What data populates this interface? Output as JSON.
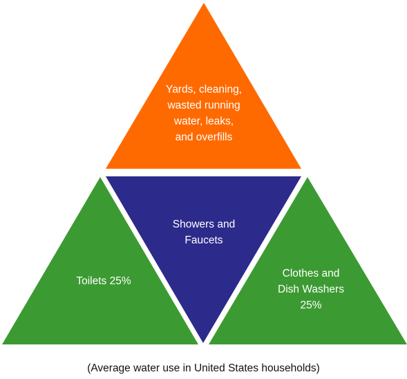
{
  "segments": {
    "top": {
      "label": "Yards, cleaning,\nwasted running\nwater, leaks,\nand overfills",
      "color": "#ff6a00"
    },
    "center": {
      "label": "Showers and\nFaucets",
      "color": "#2c2a8a"
    },
    "left": {
      "label": "Toilets 25%",
      "color": "#3c9a32"
    },
    "right": {
      "label": "Clothes and\nDish Washers\n25%",
      "color": "#3c9a32"
    }
  },
  "caption": "(Average water use in United States households)"
}
